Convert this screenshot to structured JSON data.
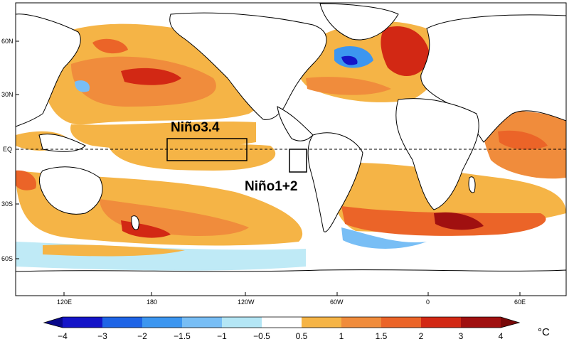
{
  "map": {
    "lat_ticks": [
      "60N",
      "30N",
      "EQ",
      "30S",
      "60S"
    ],
    "lon_ticks": [
      "120E",
      "180",
      "120W",
      "60W",
      "0",
      "60E"
    ],
    "regions": [
      {
        "label": "Niño3.4",
        "lat": [
          -5,
          5
        ],
        "lon": [
          "170W",
          "120W"
        ]
      },
      {
        "label": "Niño1+2",
        "lat": [
          -10,
          0
        ],
        "lon": [
          "90W",
          "80W"
        ]
      }
    ],
    "equator_line": "dashed"
  },
  "colorbar": {
    "labels": [
      "−4",
      "−3",
      "−2",
      "−1.5",
      "−1",
      "−0.5",
      "0.5",
      "1",
      "1.5",
      "2",
      "3",
      "4"
    ],
    "unit": "°C",
    "colors": [
      "#08088a",
      "#1414c8",
      "#1e64e6",
      "#3c96f0",
      "#78bef5",
      "#b4e6f5",
      "#ffffff",
      "#f5b446",
      "#f08c3c",
      "#eb6428",
      "#d22814",
      "#a01010",
      "#780808"
    ]
  }
}
